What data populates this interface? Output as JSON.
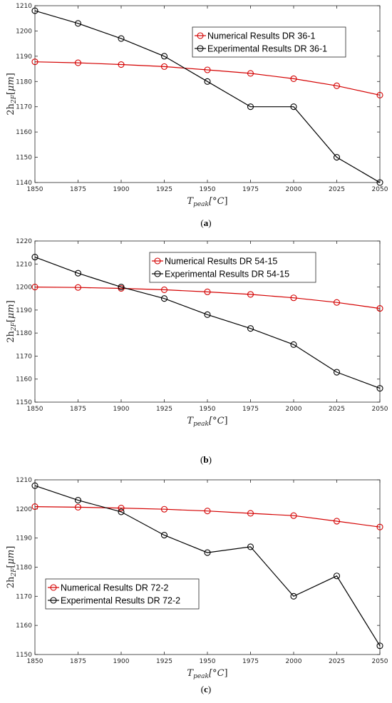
{
  "chart_data": [
    {
      "type": "line",
      "caption": "a",
      "xlabel": "T_peak[°C]",
      "ylabel": "2h_2F[μm]",
      "x": [
        1850,
        1875,
        1900,
        1925,
        1950,
        1975,
        2000,
        2025,
        2050
      ],
      "xlim": [
        1850,
        2050
      ],
      "ylim": [
        1140,
        1210
      ],
      "yticks": [
        1140,
        1150,
        1160,
        1170,
        1180,
        1190,
        1200,
        1210
      ],
      "grid": false,
      "legend_position": "top-right",
      "series": [
        {
          "name": "Numerical Results DR 36-1",
          "color": "#d40000",
          "values": [
            1187.8,
            1187.4,
            1186.7,
            1185.9,
            1184.6,
            1183.2,
            1181.1,
            1178.3,
            1174.6
          ]
        },
        {
          "name": "Experimental Results DR 36-1",
          "color": "#000000",
          "values": [
            1208,
            1203,
            1197,
            1190,
            1180,
            1170,
            1170,
            1150,
            1140
          ]
        }
      ]
    },
    {
      "type": "line",
      "caption": "b",
      "xlabel": "T_peak[°C]",
      "ylabel": "2h_2F[μm]",
      "x": [
        1850,
        1875,
        1900,
        1925,
        1950,
        1975,
        2000,
        2025,
        2050
      ],
      "xlim": [
        1850,
        2050
      ],
      "ylim": [
        1150,
        1220
      ],
      "yticks": [
        1150,
        1160,
        1170,
        1180,
        1190,
        1200,
        1210,
        1220
      ],
      "grid": false,
      "legend_position": "top-center",
      "series": [
        {
          "name": "Numerical Results DR 54-15",
          "color": "#d40000",
          "values": [
            1200.0,
            1199.8,
            1199.4,
            1198.8,
            1197.9,
            1196.8,
            1195.3,
            1193.3,
            1190.7
          ]
        },
        {
          "name": "Experimental Results DR 54-15",
          "color": "#000000",
          "values": [
            1213,
            1206,
            1200,
            1195,
            1188,
            1182,
            1175,
            1163,
            1156
          ]
        }
      ]
    },
    {
      "type": "line",
      "caption": "c",
      "xlabel": "T_peak[°C]",
      "ylabel": "2h_2F[μm]",
      "x": [
        1850,
        1875,
        1900,
        1925,
        1950,
        1975,
        2000,
        2025,
        2050
      ],
      "xlim": [
        1850,
        2050
      ],
      "ylim": [
        1150,
        1210
      ],
      "yticks": [
        1150,
        1160,
        1170,
        1180,
        1190,
        1200,
        1210
      ],
      "grid": false,
      "legend_position": "bottom-left",
      "series": [
        {
          "name": "Numerical Results DR 72-2",
          "color": "#d40000",
          "values": [
            1200.8,
            1200.6,
            1200.3,
            1199.9,
            1199.3,
            1198.5,
            1197.7,
            1195.8,
            1193.8
          ]
        },
        {
          "name": "Experimental Results DR 72-2",
          "color": "#000000",
          "values": [
            1208,
            1203,
            1199,
            1191,
            1185,
            1187,
            1170,
            1177,
            1153
          ]
        }
      ]
    }
  ]
}
